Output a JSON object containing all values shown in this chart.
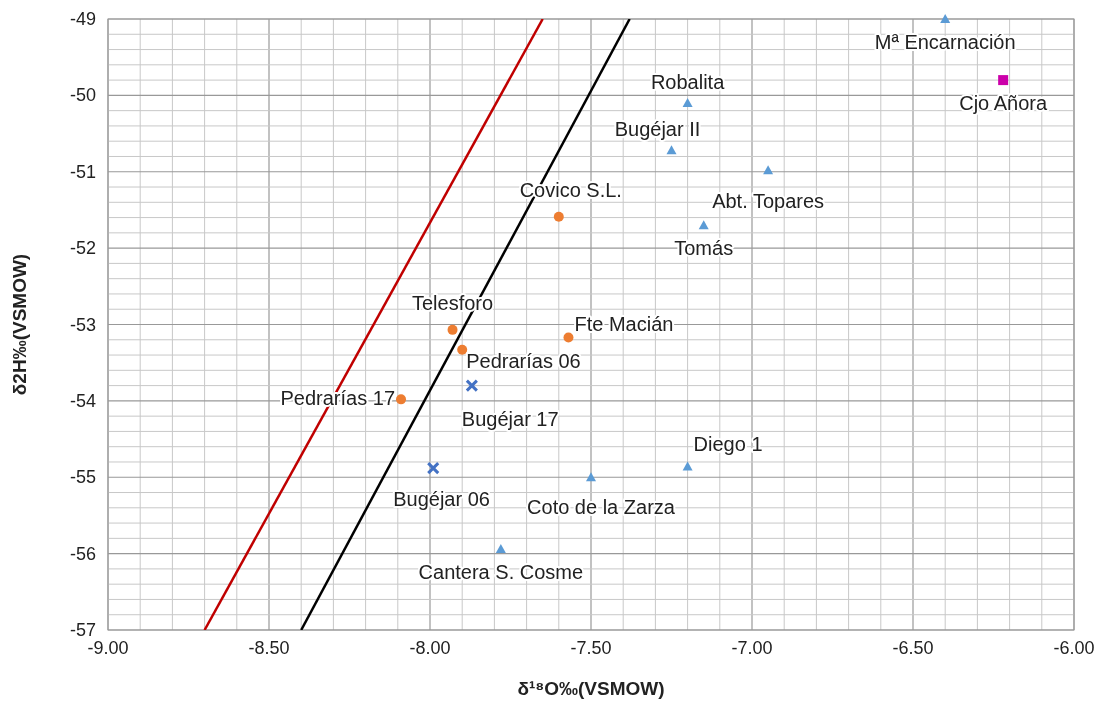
{
  "chart_data": {
    "type": "scatter",
    "xlabel": "δ¹⁸O‰(VSMOW)",
    "ylabel": "δ2H‰(VSMOW)",
    "xlim": [
      -9,
      -6
    ],
    "ylim": [
      -57,
      -49
    ],
    "xticks": [
      {
        "value": -9,
        "label": "-9.00"
      },
      {
        "value": -8.5,
        "label": "-8.50"
      },
      {
        "value": -8,
        "label": "-8.00"
      },
      {
        "value": -7.5,
        "label": "-7.50"
      },
      {
        "value": -7,
        "label": "-7.00"
      },
      {
        "value": -6.5,
        "label": "-6.50"
      },
      {
        "value": -6,
        "label": "-6.00"
      }
    ],
    "yticks": [
      -57,
      -56,
      -55,
      -54,
      -53,
      -52,
      -51,
      -50,
      -49
    ],
    "grid": true,
    "series": [
      {
        "type": "line",
        "color": "#c00000",
        "x": [
          -8.7,
          -7.65
        ],
        "values": [
          -57,
          -49
        ],
        "marker": "none"
      },
      {
        "type": "line",
        "color": "#000000",
        "x": [
          -8.4,
          -7.38
        ],
        "values": [
          -57,
          -49
        ],
        "marker": "none"
      },
      {
        "color": "#5b9bd5",
        "marker": "triangle",
        "x": [
          -6.4,
          -7.2,
          -7.25,
          -6.95,
          -7.15,
          -7.2,
          -7.5,
          -7.78
        ],
        "values": [
          -49,
          -50.1,
          -50.72,
          -50.98,
          -51.7,
          -54.86,
          -55,
          -55.94
        ]
      },
      {
        "color": "#ed7d31",
        "marker": "circle",
        "x": [
          -7.6,
          -7.93,
          -7.9,
          -7.57,
          -8.09
        ],
        "values": [
          -51.59,
          -53.07,
          -53.33,
          -53.17,
          -53.98
        ]
      },
      {
        "color": "#4472c4",
        "marker": "cross",
        "x": [
          -7.87,
          -7.99
        ],
        "values": [
          -53.8,
          -54.88
        ]
      },
      {
        "color": "#cc00aa",
        "marker": "square",
        "x": [
          -6.22
        ],
        "values": [
          -49.8
        ]
      }
    ],
    "annotations": [
      {
        "text": "Mª Encarnación",
        "x": -6.4,
        "y": -49
      },
      {
        "text": "Robalita",
        "x": -7.2,
        "y": -50.1
      },
      {
        "text": "Bugéjar II",
        "x": -7.25,
        "y": -50.72
      },
      {
        "text": "Abt. Topares",
        "x": -6.95,
        "y": -50.98
      },
      {
        "text": "Tomás",
        "x": -7.15,
        "y": -51.7
      },
      {
        "text": "Diego 1",
        "x": -7.2,
        "y": -54.86
      },
      {
        "text": "Coto de la Zarza",
        "x": -7.5,
        "y": -55
      },
      {
        "text": "Cantera S. Cosme",
        "x": -7.78,
        "y": -55.94
      },
      {
        "text": "Covico S.L.",
        "x": -7.6,
        "y": -51.59
      },
      {
        "text": "Telesforo",
        "x": -7.93,
        "y": -53.07
      },
      {
        "text": "Pedrarías 06",
        "x": -7.9,
        "y": -53.33
      },
      {
        "text": "Fte Macián",
        "x": -7.57,
        "y": -53.17
      },
      {
        "text": "Pedrarías 17",
        "x": -8.09,
        "y": -53.98
      },
      {
        "text": "Bugéjar 17",
        "x": -7.87,
        "y": -53.8
      },
      {
        "text": "Bugéjar 06",
        "x": -7.99,
        "y": -54.88
      },
      {
        "text": "Cjo Añora",
        "x": -6.22,
        "y": -49.8
      }
    ]
  }
}
